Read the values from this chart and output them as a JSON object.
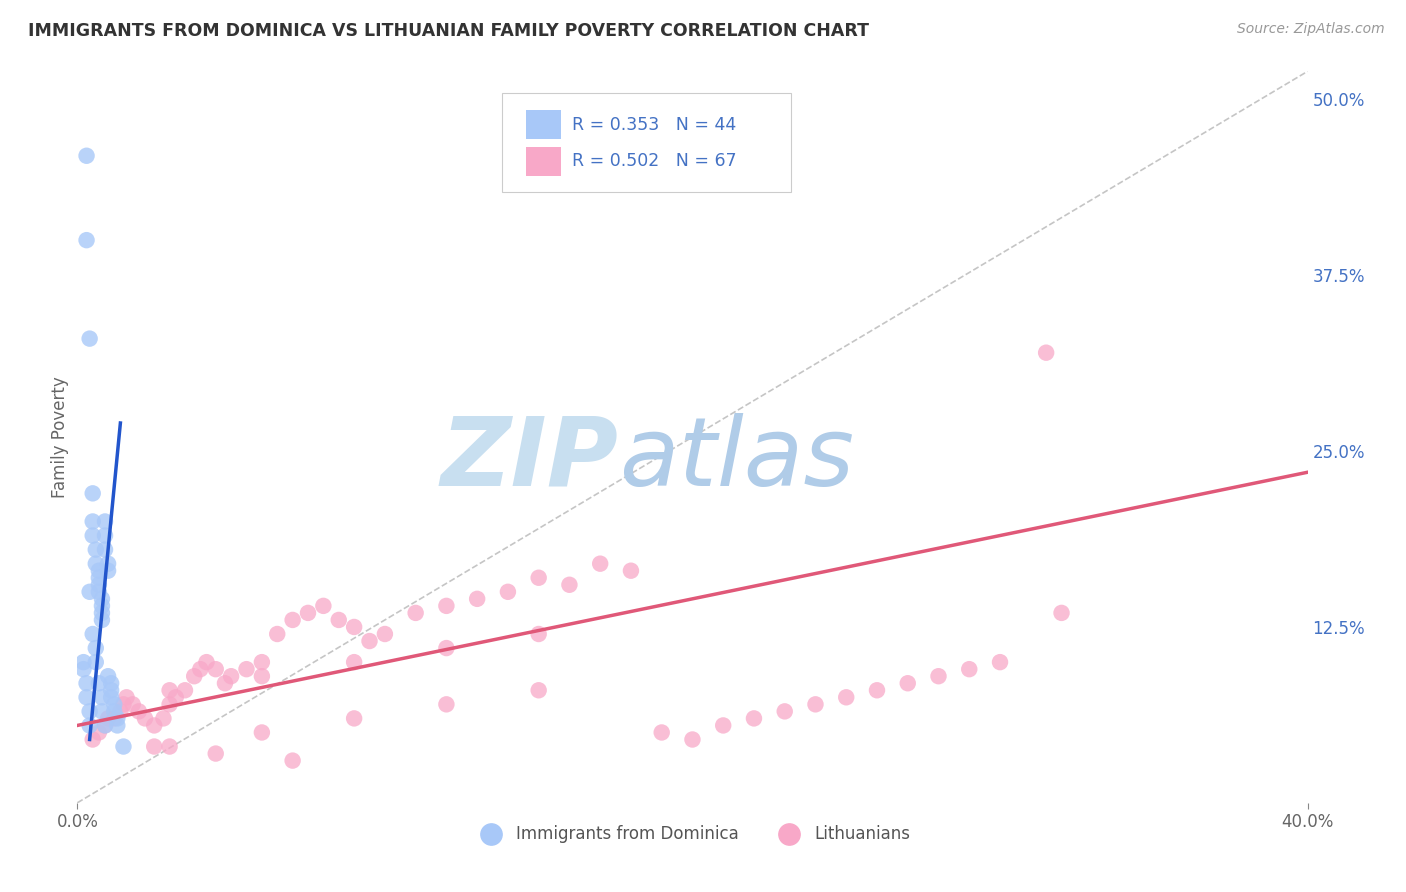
{
  "title": "IMMIGRANTS FROM DOMINICA VS LITHUANIAN FAMILY POVERTY CORRELATION CHART",
  "source": "Source: ZipAtlas.com",
  "ylabel": "Family Poverty",
  "right_yticks": [
    "50.0%",
    "37.5%",
    "25.0%",
    "12.5%"
  ],
  "right_ytick_vals": [
    0.5,
    0.375,
    0.25,
    0.125
  ],
  "legend_label_blue": "Immigrants from Dominica",
  "legend_label_pink": "Lithuanians",
  "blue_color": "#a8c8f8",
  "blue_line_color": "#2255cc",
  "pink_color": "#f8a8c8",
  "pink_line_color": "#e05878",
  "watermark_zip_color": "#c8dff0",
  "watermark_atlas_color": "#b0cce8",
  "background_color": "#ffffff",
  "xlim": [
    0.0,
    0.4
  ],
  "ylim": [
    0.0,
    0.52
  ],
  "blue_scatter_x": [
    0.003,
    0.003,
    0.004,
    0.005,
    0.005,
    0.005,
    0.006,
    0.006,
    0.007,
    0.007,
    0.007,
    0.007,
    0.008,
    0.008,
    0.008,
    0.008,
    0.009,
    0.009,
    0.009,
    0.01,
    0.01,
    0.01,
    0.011,
    0.011,
    0.011,
    0.012,
    0.012,
    0.013,
    0.013,
    0.004,
    0.005,
    0.006,
    0.006,
    0.007,
    0.008,
    0.008,
    0.009,
    0.015,
    0.002,
    0.002,
    0.003,
    0.003,
    0.004,
    0.004
  ],
  "blue_scatter_y": [
    0.46,
    0.4,
    0.33,
    0.22,
    0.2,
    0.19,
    0.18,
    0.17,
    0.165,
    0.16,
    0.155,
    0.15,
    0.145,
    0.14,
    0.135,
    0.13,
    0.2,
    0.19,
    0.18,
    0.17,
    0.165,
    0.09,
    0.085,
    0.08,
    0.075,
    0.07,
    0.065,
    0.06,
    0.055,
    0.15,
    0.12,
    0.11,
    0.1,
    0.085,
    0.075,
    0.065,
    0.055,
    0.04,
    0.1,
    0.095,
    0.085,
    0.075,
    0.065,
    0.055
  ],
  "pink_scatter_x": [
    0.005,
    0.007,
    0.009,
    0.01,
    0.012,
    0.014,
    0.015,
    0.016,
    0.018,
    0.02,
    0.022,
    0.025,
    0.028,
    0.03,
    0.032,
    0.035,
    0.038,
    0.04,
    0.042,
    0.045,
    0.048,
    0.05,
    0.055,
    0.06,
    0.065,
    0.07,
    0.075,
    0.08,
    0.085,
    0.09,
    0.095,
    0.1,
    0.11,
    0.12,
    0.13,
    0.14,
    0.15,
    0.16,
    0.17,
    0.18,
    0.19,
    0.2,
    0.21,
    0.22,
    0.23,
    0.24,
    0.25,
    0.26,
    0.27,
    0.28,
    0.29,
    0.3,
    0.03,
    0.06,
    0.09,
    0.12,
    0.15,
    0.03,
    0.06,
    0.09,
    0.12,
    0.15,
    0.315,
    0.32,
    0.025,
    0.045,
    0.07
  ],
  "pink_scatter_y": [
    0.045,
    0.05,
    0.055,
    0.06,
    0.06,
    0.065,
    0.07,
    0.075,
    0.07,
    0.065,
    0.06,
    0.055,
    0.06,
    0.07,
    0.075,
    0.08,
    0.09,
    0.095,
    0.1,
    0.095,
    0.085,
    0.09,
    0.095,
    0.1,
    0.12,
    0.13,
    0.135,
    0.14,
    0.13,
    0.125,
    0.115,
    0.12,
    0.135,
    0.14,
    0.145,
    0.15,
    0.16,
    0.155,
    0.17,
    0.165,
    0.05,
    0.045,
    0.055,
    0.06,
    0.065,
    0.07,
    0.075,
    0.08,
    0.085,
    0.09,
    0.095,
    0.1,
    0.08,
    0.09,
    0.1,
    0.11,
    0.12,
    0.04,
    0.05,
    0.06,
    0.07,
    0.08,
    0.32,
    0.135,
    0.04,
    0.035,
    0.03
  ],
  "blue_trend_x": [
    0.004,
    0.014
  ],
  "blue_trend_y": [
    0.045,
    0.27
  ],
  "pink_trend_x": [
    0.0,
    0.4
  ],
  "pink_trend_y": [
    0.055,
    0.235
  ]
}
